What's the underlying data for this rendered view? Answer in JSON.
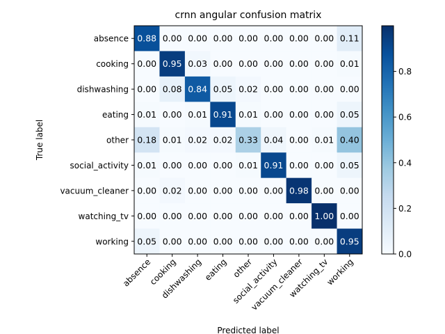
{
  "chart_data": {
    "type": "heatmap",
    "title": "crnn angular confusion matrix",
    "xlabel": "Predicted label",
    "ylabel": "True label",
    "x_categories": [
      "absence",
      "cooking",
      "dishwashing",
      "eating",
      "other",
      "social_activity",
      "vacuum_cleaner",
      "watching_tv",
      "working"
    ],
    "y_categories": [
      "absence",
      "cooking",
      "dishwashing",
      "eating",
      "other",
      "social_activity",
      "vacuum_cleaner",
      "watching_tv",
      "working"
    ],
    "values": [
      [
        0.88,
        0.0,
        0.0,
        0.0,
        0.0,
        0.0,
        0.0,
        0.0,
        0.11
      ],
      [
        0.0,
        0.95,
        0.03,
        0.0,
        0.0,
        0.0,
        0.0,
        0.0,
        0.01
      ],
      [
        0.0,
        0.08,
        0.84,
        0.05,
        0.02,
        0.0,
        0.0,
        0.0,
        0.0
      ],
      [
        0.01,
        0.0,
        0.01,
        0.91,
        0.01,
        0.0,
        0.0,
        0.0,
        0.05
      ],
      [
        0.18,
        0.01,
        0.02,
        0.02,
        0.33,
        0.04,
        0.0,
        0.01,
        0.4
      ],
      [
        0.01,
        0.0,
        0.0,
        0.0,
        0.01,
        0.91,
        0.0,
        0.0,
        0.05
      ],
      [
        0.0,
        0.02,
        0.0,
        0.0,
        0.0,
        0.0,
        0.98,
        0.0,
        0.0
      ],
      [
        0.0,
        0.0,
        0.0,
        0.0,
        0.0,
        0.0,
        0.0,
        1.0,
        0.0
      ],
      [
        0.05,
        0.0,
        0.0,
        0.0,
        0.0,
        0.0,
        0.0,
        0.0,
        0.95
      ]
    ],
    "colormap": "Blues",
    "colorbar": {
      "ticks": [
        "0.0",
        "0.2",
        "0.4",
        "0.6",
        "0.8"
      ],
      "range": [
        0,
        1
      ]
    },
    "grid": false,
    "text_colors": {
      "dark": "#000000",
      "light": "#ffffff"
    }
  }
}
